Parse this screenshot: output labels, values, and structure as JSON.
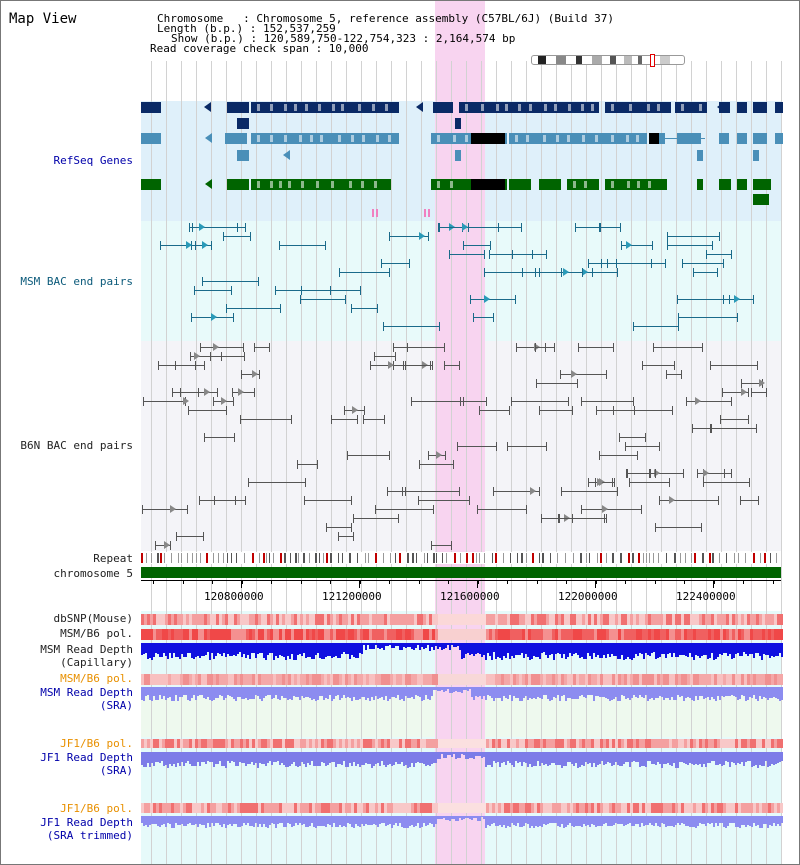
{
  "title": "Map View",
  "header": {
    "chromosome_line": "Chromosome   : Chromosome 5, reference assembly (C57BL/6J) (Build 37)",
    "length_line": "Length (b.p.) : 152,537,259",
    "show_line": "Show (b.p.) : 120,589,750-122,754,323 : 2,164,574 bp",
    "coverage_line": "Read coverage check span : 10,000"
  },
  "tracks": {
    "refseq": "RefSeq Genes",
    "msm_bac": "MSM BAC end pairs",
    "b6n_bac": "B6N BAC end pairs",
    "repeat": "Repeat",
    "chromosome": "chromosome 5",
    "dbsnp": "dbSNP(Mouse)",
    "msm_b6_pol": "MSM/B6 pol.",
    "msm_depth_cap_1": "MSM Read Depth",
    "msm_depth_cap_2": "(Capillary)",
    "msm_b6_pol_2": "MSM/B6 pol.",
    "msm_depth_sra_1": "MSM Read Depth",
    "msm_depth_sra_2": "(SRA)",
    "jf1_b6_pol": "JF1/B6 pol.",
    "jf1_depth_sra_1": "JF1 Read Depth",
    "jf1_depth_sra_2": "(SRA)",
    "jf1_b6_pol_2": "JF1/B6 pol.",
    "jf1_depth_trim_1": "JF1 Read Depth",
    "jf1_depth_trim_2": "(SRA trimmed)"
  },
  "axis": {
    "ticks": [
      "120800000",
      "121200000",
      "121600000",
      "122000000",
      "122400000"
    ]
  },
  "colors": {
    "refseq_dark": "#0a2a66",
    "refseq_light": "#4a8fb8",
    "refseq_green": "#006400",
    "highlight": "#f8d4f0",
    "msm_pair": "#1a6a8a",
    "b6n_pair": "#555555",
    "depth_blue": "#1010e0",
    "depth_sra": "#8c8cf0"
  }
}
